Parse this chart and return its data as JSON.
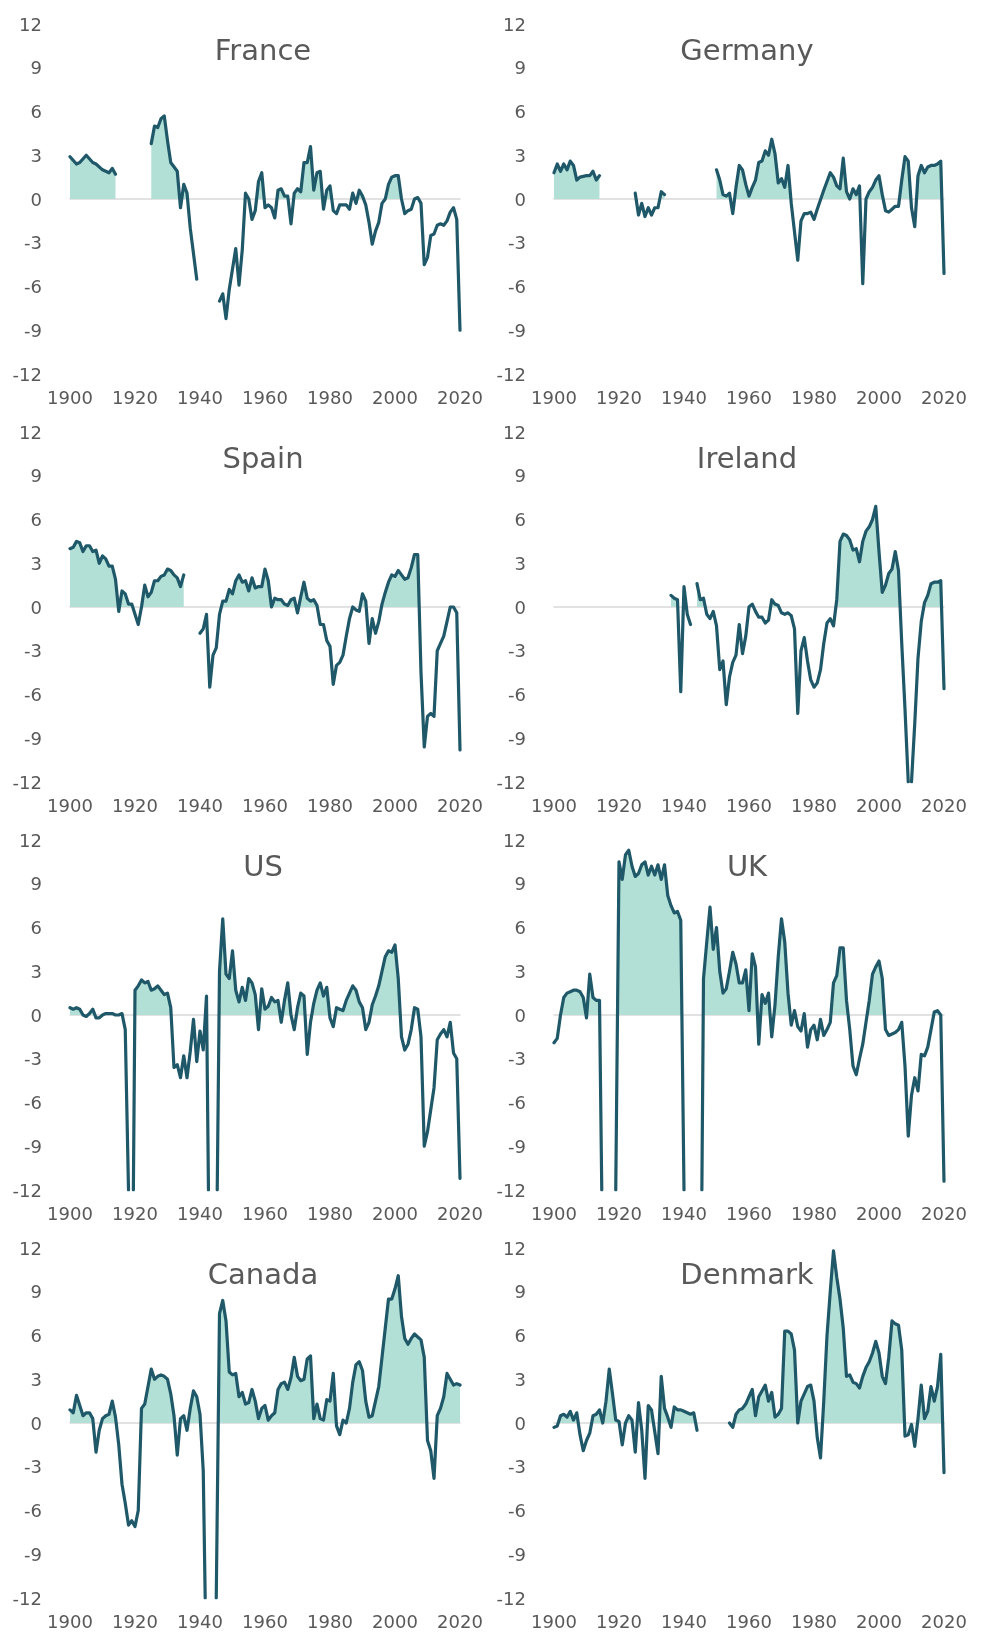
{
  "chart_data": [
    {
      "type": "area",
      "title": "France",
      "xlim": [
        1900,
        2020
      ],
      "xticks": [
        1900,
        1920,
        1940,
        1960,
        1980,
        2000,
        2020
      ],
      "ylim": [
        -12,
        12
      ],
      "yticks": [
        -12,
        -9,
        -6,
        -3,
        0,
        3,
        6,
        9,
        12
      ],
      "series": [
        {
          "color": "#1f5868",
          "x": [
            1900,
            1902,
            1903,
            1905,
            1907,
            1908,
            1910,
            1912,
            1913,
            1914,
            1919,
            1925,
            1926,
            1927,
            1928,
            1929,
            1930,
            1931,
            1933,
            1934,
            1935,
            1936,
            1937,
            1939,
            1942,
            1946,
            1947,
            1948,
            1949,
            1951,
            1952,
            1953,
            1954,
            1955,
            1956,
            1957,
            1958,
            1959,
            1960,
            1961,
            1962,
            1963,
            1964,
            1965,
            1966,
            1967,
            1968,
            1969,
            1970,
            1971,
            1972,
            1973,
            1974,
            1975,
            1976,
            1977,
            1978,
            1979,
            1980,
            1981,
            1982,
            1983,
            1985,
            1986,
            1987,
            1988,
            1989,
            1990,
            1991,
            1992,
            1993,
            1994,
            1995,
            1996,
            1997,
            1998,
            1999,
            2000,
            2001,
            2002,
            2003,
            2004,
            2005,
            2006,
            2007,
            2008,
            2009,
            2010,
            2011,
            2012,
            2013,
            2014,
            2015,
            2016,
            2017,
            2018,
            2019,
            2020
          ],
          "values": [
            2.9,
            2.4,
            2.5,
            3.0,
            2.5,
            2.4,
            2.0,
            1.8,
            2.1,
            1.7,
            null,
            3.8,
            5.0,
            4.9,
            5.5,
            5.7,
            4.0,
            2.5,
            1.9,
            -0.6,
            1.0,
            0.4,
            -2.0,
            -5.5,
            null,
            -7.0,
            -6.5,
            -8.2,
            -6.2,
            -3.4,
            -5.9,
            -3.5,
            0.4,
            0.0,
            -1.4,
            -0.8,
            1.2,
            1.8,
            -0.6,
            -0.4,
            -0.6,
            -1.3,
            0.6,
            0.7,
            0.2,
            0.2,
            -1.7,
            0.4,
            0.7,
            0.5,
            2.5,
            2.5,
            3.6,
            0.6,
            1.8,
            1.9,
            -0.7,
            0.6,
            0.9,
            -0.8,
            -1.0,
            -0.4,
            -0.4,
            -0.7,
            0.4,
            -0.3,
            0.6,
            0.2,
            -0.4,
            -1.6,
            -3.1,
            -2.2,
            -1.6,
            -0.3,
            0.0,
            1.0,
            1.5,
            1.6,
            1.6,
            0.0,
            -1.0,
            -0.8,
            -0.7,
            0.0,
            0.1,
            -0.3,
            -4.5,
            -4.0,
            -2.5,
            -2.4,
            -1.8,
            -1.7,
            -1.8,
            -1.5,
            -0.9,
            -0.6,
            -1.4,
            -9.0
          ]
        }
      ]
    },
    {
      "type": "area",
      "title": "Germany",
      "xlim": [
        1900,
        2020
      ],
      "xticks": [
        1900,
        1920,
        1940,
        1960,
        1980,
        2000,
        2020
      ],
      "ylim": [
        -12,
        12
      ],
      "yticks": [
        -12,
        -9,
        -6,
        -3,
        0,
        3,
        6,
        9,
        12
      ],
      "series": [
        {
          "color": "#1f5868",
          "x": [
            1900,
            1901,
            1902,
            1903,
            1904,
            1905,
            1906,
            1907,
            1908,
            1910,
            1911,
            1912,
            1913,
            1914,
            1920,
            1925,
            1926,
            1927,
            1928,
            1929,
            1930,
            1931,
            1932,
            1933,
            1934,
            1940,
            1950,
            1951,
            1952,
            1953,
            1954,
            1955,
            1956,
            1957,
            1958,
            1959,
            1960,
            1961,
            1962,
            1963,
            1964,
            1965,
            1966,
            1967,
            1968,
            1969,
            1970,
            1971,
            1972,
            1973,
            1975,
            1976,
            1977,
            1978,
            1979,
            1980,
            1981,
            1983,
            1985,
            1986,
            1987,
            1988,
            1989,
            1990,
            1991,
            1992,
            1993,
            1994,
            1995,
            1996,
            1997,
            1998,
            1999,
            2000,
            2001,
            2002,
            2003,
            2004,
            2005,
            2006,
            2007,
            2008,
            2009,
            2010,
            2011,
            2012,
            2013,
            2014,
            2015,
            2016,
            2017,
            2018,
            2019,
            2020
          ],
          "values": [
            1.8,
            2.4,
            1.9,
            2.4,
            2.0,
            2.6,
            2.3,
            1.3,
            1.5,
            1.6,
            1.6,
            1.9,
            1.3,
            1.6,
            null,
            0.4,
            -1.1,
            -0.3,
            -1.2,
            -0.6,
            -1.1,
            -0.6,
            -0.6,
            0.5,
            0.3,
            null,
            2.0,
            1.3,
            0.3,
            0.2,
            0.4,
            -1.0,
            0.8,
            2.3,
            2.0,
            1.0,
            0.2,
            0.8,
            1.3,
            2.5,
            2.6,
            3.3,
            3.0,
            4.1,
            3.1,
            1.1,
            1.4,
            0.8,
            2.3,
            -0.3,
            -4.2,
            -1.5,
            -1.0,
            -1.0,
            -0.9,
            -1.4,
            -0.7,
            0.6,
            1.8,
            1.5,
            0.9,
            0.7,
            2.8,
            0.5,
            0.0,
            0.7,
            0.3,
            0.9,
            -5.8,
            0.0,
            0.5,
            0.8,
            1.3,
            1.6,
            0.3,
            -0.8,
            -0.9,
            -0.7,
            -0.5,
            -0.5,
            1.3,
            2.9,
            2.6,
            -0.6,
            -1.9,
            1.6,
            2.3,
            1.8,
            2.2,
            2.3,
            2.3,
            2.4,
            2.6,
            -5.1
          ]
        }
      ]
    },
    {
      "type": "area",
      "title": "Spain",
      "xlim": [
        1900,
        2020
      ],
      "xticks": [
        1900,
        1920,
        1940,
        1960,
        1980,
        2000,
        2020
      ],
      "ylim": [
        -12,
        12
      ],
      "yticks": [
        -12,
        -9,
        -6,
        -3,
        0,
        3,
        6,
        9,
        12
      ],
      "series": [
        {
          "color": "#1f5868",
          "x": [
            1900,
            1901,
            1902,
            1903,
            1904,
            1905,
            1906,
            1907,
            1908,
            1909,
            1910,
            1911,
            1912,
            1913,
            1914,
            1915,
            1916,
            1917,
            1918,
            1919,
            1920,
            1921,
            1922,
            1923,
            1924,
            1925,
            1926,
            1927,
            1928,
            1929,
            1930,
            1931,
            1932,
            1933,
            1934,
            1935,
            1938,
            1940,
            1941,
            1942,
            1943,
            1944,
            1945,
            1946,
            1947,
            1948,
            1949,
            1950,
            1951,
            1952,
            1953,
            1954,
            1955,
            1956,
            1957,
            1958,
            1959,
            1960,
            1961,
            1962,
            1963,
            1964,
            1965,
            1966,
            1967,
            1968,
            1969,
            1970,
            1971,
            1972,
            1973,
            1974,
            1975,
            1976,
            1977,
            1978,
            1979,
            1980,
            1981,
            1982,
            1983,
            1984,
            1985,
            1986,
            1987,
            1988,
            1989,
            1990,
            1991,
            1992,
            1993,
            1994,
            1995,
            1996,
            1997,
            1998,
            1999,
            2000,
            2001,
            2002,
            2003,
            2004,
            2005,
            2006,
            2007,
            2008,
            2009,
            2010,
            2011,
            2012,
            2013,
            2014,
            2015,
            2016,
            2017,
            2018,
            2019,
            2020
          ],
          "values": [
            4.0,
            4.1,
            4.5,
            4.4,
            3.8,
            4.2,
            4.2,
            3.8,
            3.9,
            3.0,
            3.5,
            3.3,
            2.8,
            2.8,
            1.9,
            -0.3,
            1.1,
            0.9,
            0.2,
            0.2,
            -0.5,
            -1.2,
            0.0,
            1.5,
            0.7,
            1.0,
            1.8,
            1.8,
            2.1,
            2.2,
            2.6,
            2.5,
            2.2,
            2.0,
            1.4,
            2.2,
            null,
            -1.8,
            -1.5,
            -0.5,
            -5.5,
            -3.3,
            -2.8,
            -0.5,
            0.4,
            0.4,
            1.2,
            0.9,
            1.8,
            2.2,
            1.7,
            1.8,
            1.1,
            2.0,
            1.3,
            1.4,
            1.4,
            2.6,
            1.8,
            0.0,
            0.6,
            0.5,
            0.5,
            0.2,
            0.1,
            0.5,
            0.6,
            -0.4,
            0.7,
            1.7,
            0.6,
            0.4,
            0.5,
            0.1,
            -1.2,
            -1.2,
            -2.3,
            -2.7,
            -5.3,
            -4.0,
            -3.8,
            -3.3,
            -2.0,
            -0.8,
            0.0,
            -0.2,
            -0.3,
            0.9,
            0.4,
            -2.5,
            -0.8,
            -1.8,
            -1.0,
            0.2,
            1.0,
            1.7,
            2.2,
            2.1,
            2.5,
            2.2,
            1.9,
            2.0,
            2.7,
            3.6,
            3.6,
            -4.5,
            -9.6,
            -7.5,
            -7.3,
            -7.5,
            -3.0,
            -2.5,
            -2.0,
            -1.0,
            0.0,
            0.0,
            -0.4,
            -9.8
          ]
        }
      ]
    },
    {
      "type": "area",
      "title": "Ireland",
      "xlim": [
        1900,
        2020
      ],
      "xticks": [
        1900,
        1920,
        1940,
        1960,
        1980,
        2000,
        2020
      ],
      "ylim": [
        -12,
        12
      ],
      "yticks": [
        -12,
        -9,
        -6,
        -3,
        0,
        3,
        6,
        9,
        12
      ],
      "series": [
        {
          "color": "#1f5868",
          "x": [
            1936,
            1937,
            1938,
            1939,
            1940,
            1941,
            1942,
            1943,
            1944,
            1945,
            1946,
            1947,
            1948,
            1949,
            1950,
            1951,
            1952,
            1953,
            1954,
            1955,
            1956,
            1957,
            1958,
            1959,
            1960,
            1961,
            1962,
            1963,
            1964,
            1965,
            1966,
            1967,
            1968,
            1969,
            1970,
            1971,
            1972,
            1973,
            1974,
            1975,
            1976,
            1977,
            1978,
            1979,
            1980,
            1981,
            1982,
            1983,
            1984,
            1985,
            1986,
            1987,
            1988,
            1989,
            1990,
            1991,
            1992,
            1993,
            1994,
            1995,
            1996,
            1997,
            1998,
            1999,
            2000,
            2001,
            2002,
            2003,
            2004,
            2005,
            2006,
            2007,
            2008,
            2009,
            2009.5,
            2010,
            2011,
            2012,
            2013,
            2014,
            2015,
            2016,
            2017,
            2018,
            2019,
            2020
          ],
          "values": [
            0.8,
            0.6,
            0.5,
            -5.8,
            1.4,
            -0.5,
            -1.2,
            null,
            1.6,
            0.5,
            0.6,
            -0.5,
            -0.8,
            -0.3,
            -1.3,
            -4.3,
            -3.7,
            -6.7,
            -4.8,
            -3.8,
            -3.3,
            -1.2,
            -3.2,
            -2.0,
            0.0,
            0.2,
            -0.3,
            -0.7,
            -0.7,
            -1.1,
            -0.9,
            0.5,
            0.2,
            0.1,
            -0.4,
            -0.5,
            -0.4,
            -0.6,
            -1.5,
            -7.3,
            -3.0,
            -2.1,
            -3.7,
            -5.0,
            -5.5,
            -5.2,
            -4.3,
            -2.5,
            -1.1,
            -0.8,
            -1.3,
            0.5,
            4.5,
            5.0,
            4.9,
            4.6,
            3.9,
            4.0,
            3.1,
            4.5,
            5.2,
            5.5,
            6.0,
            6.9,
            3.8,
            1.0,
            1.5,
            2.3,
            2.6,
            3.8,
            2.5,
            -2.5,
            -7.0,
            -12,
            null,
            -12,
            -8.0,
            -3.5,
            -1.0,
            0.3,
            0.8,
            1.6,
            1.7,
            1.7,
            1.8,
            -5.6
          ]
        }
      ]
    },
    {
      "type": "area",
      "title": "US",
      "xlim": [
        1900,
        2020
      ],
      "xticks": [
        1900,
        1920,
        1940,
        1960,
        1980,
        2000,
        2020
      ],
      "ylim": [
        -12,
        12
      ],
      "yticks": [
        -12,
        -9,
        -6,
        -3,
        0,
        3,
        6,
        9,
        12
      ],
      "series": [
        {
          "color": "#1f5868",
          "x": [
            1900,
            1901,
            1902,
            1903,
            1904,
            1905,
            1906,
            1907,
            1908,
            1909,
            1910,
            1911,
            1912,
            1913,
            1914,
            1915,
            1916,
            1917,
            1918,
            1919,
            1919.5,
            1920,
            1921,
            1922,
            1923,
            1924,
            1925,
            1926,
            1927,
            1928,
            1929,
            1930,
            1931,
            1932,
            1933,
            1934,
            1935,
            1936,
            1937,
            1938,
            1939,
            1940,
            1941,
            1942,
            1942.6,
            1944,
            1945.3,
            1946,
            1947,
            1948,
            1949,
            1950,
            1951,
            1952,
            1953,
            1954,
            1955,
            1956,
            1957,
            1958,
            1959,
            1960,
            1961,
            1962,
            1963,
            1964,
            1965,
            1966,
            1967,
            1968,
            1969,
            1970,
            1971,
            1972,
            1973,
            1974,
            1975,
            1976,
            1977,
            1978,
            1979,
            1980,
            1981,
            1982,
            1983,
            1984,
            1985,
            1986,
            1987,
            1988,
            1989,
            1990,
            1991,
            1992,
            1993,
            1994,
            1995,
            1996,
            1997,
            1998,
            1999,
            2000,
            2001,
            2002,
            2003,
            2004,
            2005,
            2006,
            2007,
            2008,
            2009,
            2010,
            2011,
            2012,
            2013,
            2014,
            2015,
            2016,
            2017,
            2018,
            2019,
            2020
          ],
          "values": [
            0.5,
            0.4,
            0.5,
            0.4,
            0.0,
            -0.1,
            0.1,
            0.4,
            -0.2,
            -0.2,
            0.0,
            0.1,
            0.1,
            0.1,
            0.0,
            0.0,
            0.1,
            -1.0,
            -12,
            null,
            -12,
            1.7,
            2.0,
            2.4,
            2.2,
            2.3,
            1.7,
            1.8,
            2.0,
            1.7,
            1.4,
            1.5,
            0.5,
            -3.6,
            -3.4,
            -4.3,
            -2.8,
            -4.3,
            -2.5,
            -0.3,
            -3.2,
            -1.1,
            -2.4,
            1.3,
            -12,
            null,
            -12,
            3.0,
            6.6,
            2.8,
            2.5,
            4.4,
            1.7,
            0.9,
            1.9,
            1.0,
            2.5,
            2.2,
            1.4,
            -1.0,
            1.8,
            0.4,
            0.6,
            1.2,
            0.9,
            1.0,
            -0.5,
            1.0,
            2.2,
            0.0,
            -1.0,
            0.5,
            1.5,
            1.3,
            -2.7,
            -0.5,
            0.8,
            1.7,
            2.2,
            1.3,
            1.9,
            -0.2,
            -0.8,
            0.5,
            0.4,
            0.3,
            1.0,
            1.5,
            2.0,
            1.7,
            0.9,
            0.5,
            -1.0,
            -0.5,
            0.7,
            1.3,
            2.0,
            3.0,
            4.0,
            4.4,
            4.3,
            4.8,
            2.5,
            -1.5,
            -2.4,
            -2.0,
            -1.0,
            0.5,
            0.4,
            -1.5,
            -9.0,
            -8.0,
            -6.5,
            -5.0,
            -1.7,
            -1.3,
            -1.0,
            -1.5,
            -0.5,
            -2.6,
            -3.0,
            -11.2
          ]
        }
      ]
    },
    {
      "type": "area",
      "title": "UK",
      "xlim": [
        1900,
        2020
      ],
      "xticks": [
        1900,
        1920,
        1940,
        1960,
        1980,
        2000,
        2020
      ],
      "ylim": [
        -12,
        12
      ],
      "yticks": [
        -12,
        -9,
        -6,
        -3,
        0,
        3,
        6,
        9,
        12
      ],
      "series": [
        {
          "color": "#1f5868",
          "x": [
            1900,
            1901,
            1902,
            1903,
            1904,
            1905,
            1906,
            1907,
            1908,
            1909,
            1910,
            1911,
            1912,
            1913,
            1914,
            1914.7,
            1917,
            1919,
            1920,
            1921,
            1922,
            1923,
            1924,
            1925,
            1926,
            1927,
            1928,
            1929,
            1930,
            1931,
            1932,
            1933,
            1934,
            1935,
            1936,
            1937,
            1938,
            1939,
            1940,
            1943,
            1945.5,
            1946,
            1947,
            1948,
            1949,
            1950,
            1951,
            1952,
            1953,
            1954,
            1955,
            1956,
            1957,
            1958,
            1959,
            1960,
            1961,
            1962,
            1963,
            1964,
            1965,
            1966,
            1967,
            1968,
            1969,
            1970,
            1971,
            1972,
            1973,
            1974,
            1975,
            1976,
            1977,
            1978,
            1979,
            1980,
            1981,
            1982,
            1983,
            1984,
            1985,
            1986,
            1987,
            1988,
            1989,
            1990,
            1991,
            1992,
            1993,
            1994,
            1995,
            1996,
            1997,
            1998,
            1999,
            2000,
            2001,
            2002,
            2003,
            2004,
            2005,
            2006,
            2007,
            2008,
            2009,
            2010,
            2011,
            2012,
            2013,
            2014,
            2015,
            2016,
            2017,
            2018,
            2019,
            2020
          ],
          "values": [
            -1.9,
            -1.6,
            0.0,
            1.2,
            1.5,
            1.6,
            1.7,
            1.7,
            1.6,
            1.2,
            -0.2,
            2.8,
            1.2,
            1.0,
            1.0,
            -12,
            null,
            -12,
            10.5,
            9.3,
            11.0,
            11.3,
            10.2,
            9.5,
            9.7,
            10.3,
            10.5,
            9.6,
            10.2,
            9.6,
            10.3,
            9.3,
            10.3,
            8.2,
            7.5,
            7.0,
            7.1,
            6.5,
            -12,
            null,
            -12,
            2.5,
            5.0,
            7.4,
            4.5,
            6.0,
            3.0,
            1.5,
            1.8,
            3.0,
            4.3,
            3.5,
            2.2,
            2.2,
            3.1,
            0.3,
            4.2,
            3.3,
            -2.0,
            1.4,
            0.8,
            1.5,
            -1.5,
            0.7,
            4.0,
            6.6,
            5.0,
            1.5,
            -0.7,
            0.3,
            -0.8,
            -1.1,
            0.1,
            -2.2,
            -1.0,
            -0.7,
            -1.7,
            -0.3,
            -1.4,
            -1.0,
            -0.5,
            2.2,
            2.7,
            4.6,
            4.6,
            1.0,
            -1.0,
            -3.5,
            -4.1,
            -3.0,
            -2.0,
            -0.5,
            1.0,
            2.8,
            3.3,
            3.7,
            2.5,
            -1.0,
            -1.4,
            -1.3,
            -1.2,
            -1.0,
            -0.5,
            -3.5,
            -8.3,
            -5.5,
            -4.3,
            -5.2,
            -2.7,
            -2.8,
            -2.2,
            -1.0,
            0.2,
            0.3,
            0.0,
            -11.4
          ]
        }
      ]
    },
    {
      "type": "area",
      "title": "Canada",
      "xlim": [
        1900,
        2020
      ],
      "xticks": [
        1900,
        1920,
        1940,
        1960,
        1980,
        2000,
        2020
      ],
      "ylim": [
        -12,
        12
      ],
      "yticks": [
        -12,
        -9,
        -6,
        -3,
        0,
        3,
        6,
        9,
        12
      ],
      "series": [
        {
          "color": "#1f5868",
          "x": [
            1900,
            1901,
            1902,
            1903,
            1904,
            1905,
            1906,
            1907,
            1908,
            1909,
            1910,
            1911,
            1912,
            1913,
            1914,
            1915,
            1916,
            1917,
            1918,
            1919,
            1920,
            1921,
            1922,
            1923,
            1924,
            1925,
            1926,
            1927,
            1928,
            1929,
            1930,
            1931,
            1932,
            1933,
            1934,
            1935,
            1936,
            1937,
            1938,
            1939,
            1940,
            1941,
            1941.6,
            1943,
            1945,
            1946,
            1947,
            1948,
            1949,
            1950,
            1951,
            1952,
            1953,
            1954,
            1955,
            1956,
            1957,
            1958,
            1959,
            1960,
            1961,
            1962,
            1963,
            1964,
            1965,
            1966,
            1967,
            1968,
            1969,
            1970,
            1971,
            1972,
            1973,
            1974,
            1975,
            1976,
            1977,
            1978,
            1979,
            1980,
            1981,
            1982,
            1983,
            1984,
            1985,
            1986,
            1987,
            1988,
            1989,
            1990,
            1991,
            1992,
            1993,
            1994,
            1995,
            1996,
            1997,
            1998,
            1999,
            2000,
            2001,
            2002,
            2003,
            2004,
            2005,
            2006,
            2007,
            2008,
            2009,
            2010,
            2011,
            2012,
            2013,
            2014,
            2015,
            2016,
            2017,
            2018,
            2019,
            2020
          ],
          "values": [
            0.9,
            0.7,
            1.9,
            1.2,
            0.5,
            0.7,
            0.7,
            0.3,
            -2.0,
            -0.5,
            0.3,
            0.5,
            0.6,
            1.5,
            0.4,
            -1.5,
            -4.2,
            -5.5,
            -7.0,
            -6.7,
            -7.1,
            -6.0,
            1.0,
            1.3,
            2.5,
            3.7,
            3.0,
            3.2,
            3.3,
            3.2,
            3.0,
            2.0,
            0.5,
            -2.2,
            0.3,
            0.5,
            -0.5,
            1.0,
            2.2,
            1.8,
            0.6,
            -3.3,
            -12,
            null,
            -12,
            7.5,
            8.4,
            7.0,
            3.5,
            3.3,
            3.4,
            1.8,
            2.1,
            1.3,
            1.4,
            2.3,
            1.5,
            0.3,
            1.0,
            1.2,
            0.2,
            0.5,
            0.7,
            2.3,
            2.7,
            2.8,
            2.3,
            3.1,
            4.5,
            3.2,
            2.9,
            3.0,
            4.4,
            4.6,
            0.3,
            1.3,
            0.3,
            0.2,
            1.6,
            1.5,
            3.4,
            -0.2,
            -0.8,
            0.2,
            0.0,
            1.0,
            2.8,
            4.0,
            4.2,
            3.6,
            1.5,
            0.4,
            0.5,
            1.5,
            2.5,
            4.5,
            6.5,
            8.5,
            8.5,
            9.2,
            10.1,
            7.3,
            5.8,
            5.4,
            5.8,
            6.1,
            5.9,
            5.7,
            4.5,
            -1.2,
            -1.9,
            -3.8,
            0.5,
            1.0,
            1.8,
            3.4,
            3.0,
            2.6,
            2.7,
            2.6
          ]
        }
      ]
    },
    {
      "type": "area",
      "title": "Denmark",
      "xlim": [
        1900,
        2020
      ],
      "xticks": [
        1900,
        1920,
        1940,
        1960,
        1980,
        2000,
        2020
      ],
      "ylim": [
        -12,
        12
      ],
      "yticks": [
        -12,
        -9,
        -6,
        -3,
        0,
        3,
        6,
        9,
        12
      ],
      "series": [
        {
          "color": "#1f5868",
          "x": [
            1900,
            1901,
            1902,
            1903,
            1904,
            1905,
            1906,
            1907,
            1908,
            1909,
            1910,
            1911,
            1912,
            1913,
            1914,
            1915,
            1916,
            1917,
            1918,
            1919,
            1920,
            1921,
            1922,
            1923,
            1924,
            1925,
            1926,
            1927,
            1928,
            1929,
            1930,
            1931,
            1932,
            1933,
            1934,
            1935,
            1936,
            1937,
            1938,
            1939,
            1940,
            1941,
            1942,
            1943,
            1944,
            1950,
            1954,
            1955,
            1956,
            1957,
            1958,
            1959,
            1960,
            1961,
            1962,
            1963,
            1964,
            1965,
            1966,
            1967,
            1968,
            1969,
            1970,
            1971,
            1972,
            1973,
            1974,
            1975,
            1976,
            1977,
            1978,
            1979,
            1980,
            1981,
            1982,
            1983,
            1984,
            1985,
            1986,
            1987,
            1988,
            1989,
            1990,
            1991,
            1992,
            1993,
            1994,
            1995,
            1996,
            1997,
            1998,
            1999,
            2000,
            2001,
            2002,
            2003,
            2004,
            2005,
            2006,
            2007,
            2008,
            2009,
            2010,
            2011,
            2012,
            2013,
            2014,
            2015,
            2016,
            2017,
            2018,
            2019,
            2020
          ],
          "values": [
            -0.3,
            -0.2,
            0.5,
            0.6,
            0.4,
            0.8,
            0.2,
            0.7,
            -0.8,
            -1.9,
            -1.2,
            -0.7,
            0.5,
            0.6,
            0.9,
            0.0,
            1.5,
            3.7,
            2.0,
            0.2,
            0.1,
            -1.5,
            0.0,
            0.5,
            0.2,
            -2.0,
            1.4,
            -0.5,
            -3.8,
            1.2,
            0.9,
            -0.6,
            -2.1,
            3.2,
            1.0,
            0.4,
            -0.3,
            1.1,
            0.9,
            0.9,
            0.8,
            0.7,
            0.6,
            0.7,
            -0.5,
            null,
            0.0,
            -0.3,
            0.6,
            0.9,
            1.0,
            1.3,
            1.8,
            2.3,
            0.5,
            1.8,
            2.2,
            2.6,
            1.5,
            2.1,
            0.4,
            0.6,
            1.0,
            6.3,
            6.3,
            6.1,
            5.0,
            0.0,
            1.5,
            2.0,
            2.5,
            2.6,
            1.5,
            -1.0,
            -2.4,
            1.5,
            6.0,
            9.0,
            11.8,
            10.0,
            8.5,
            6.5,
            3.2,
            3.3,
            2.8,
            2.7,
            2.4,
            3.2,
            3.8,
            4.2,
            4.8,
            5.6,
            4.8,
            3.2,
            2.7,
            4.5,
            7.0,
            6.8,
            6.7,
            5.0,
            -0.9,
            -0.8,
            -0.1,
            -1.6,
            0.3,
            2.6,
            0.3,
            0.8,
            2.5,
            1.5,
            2.5,
            4.7,
            -3.4
          ]
        }
      ]
    }
  ]
}
